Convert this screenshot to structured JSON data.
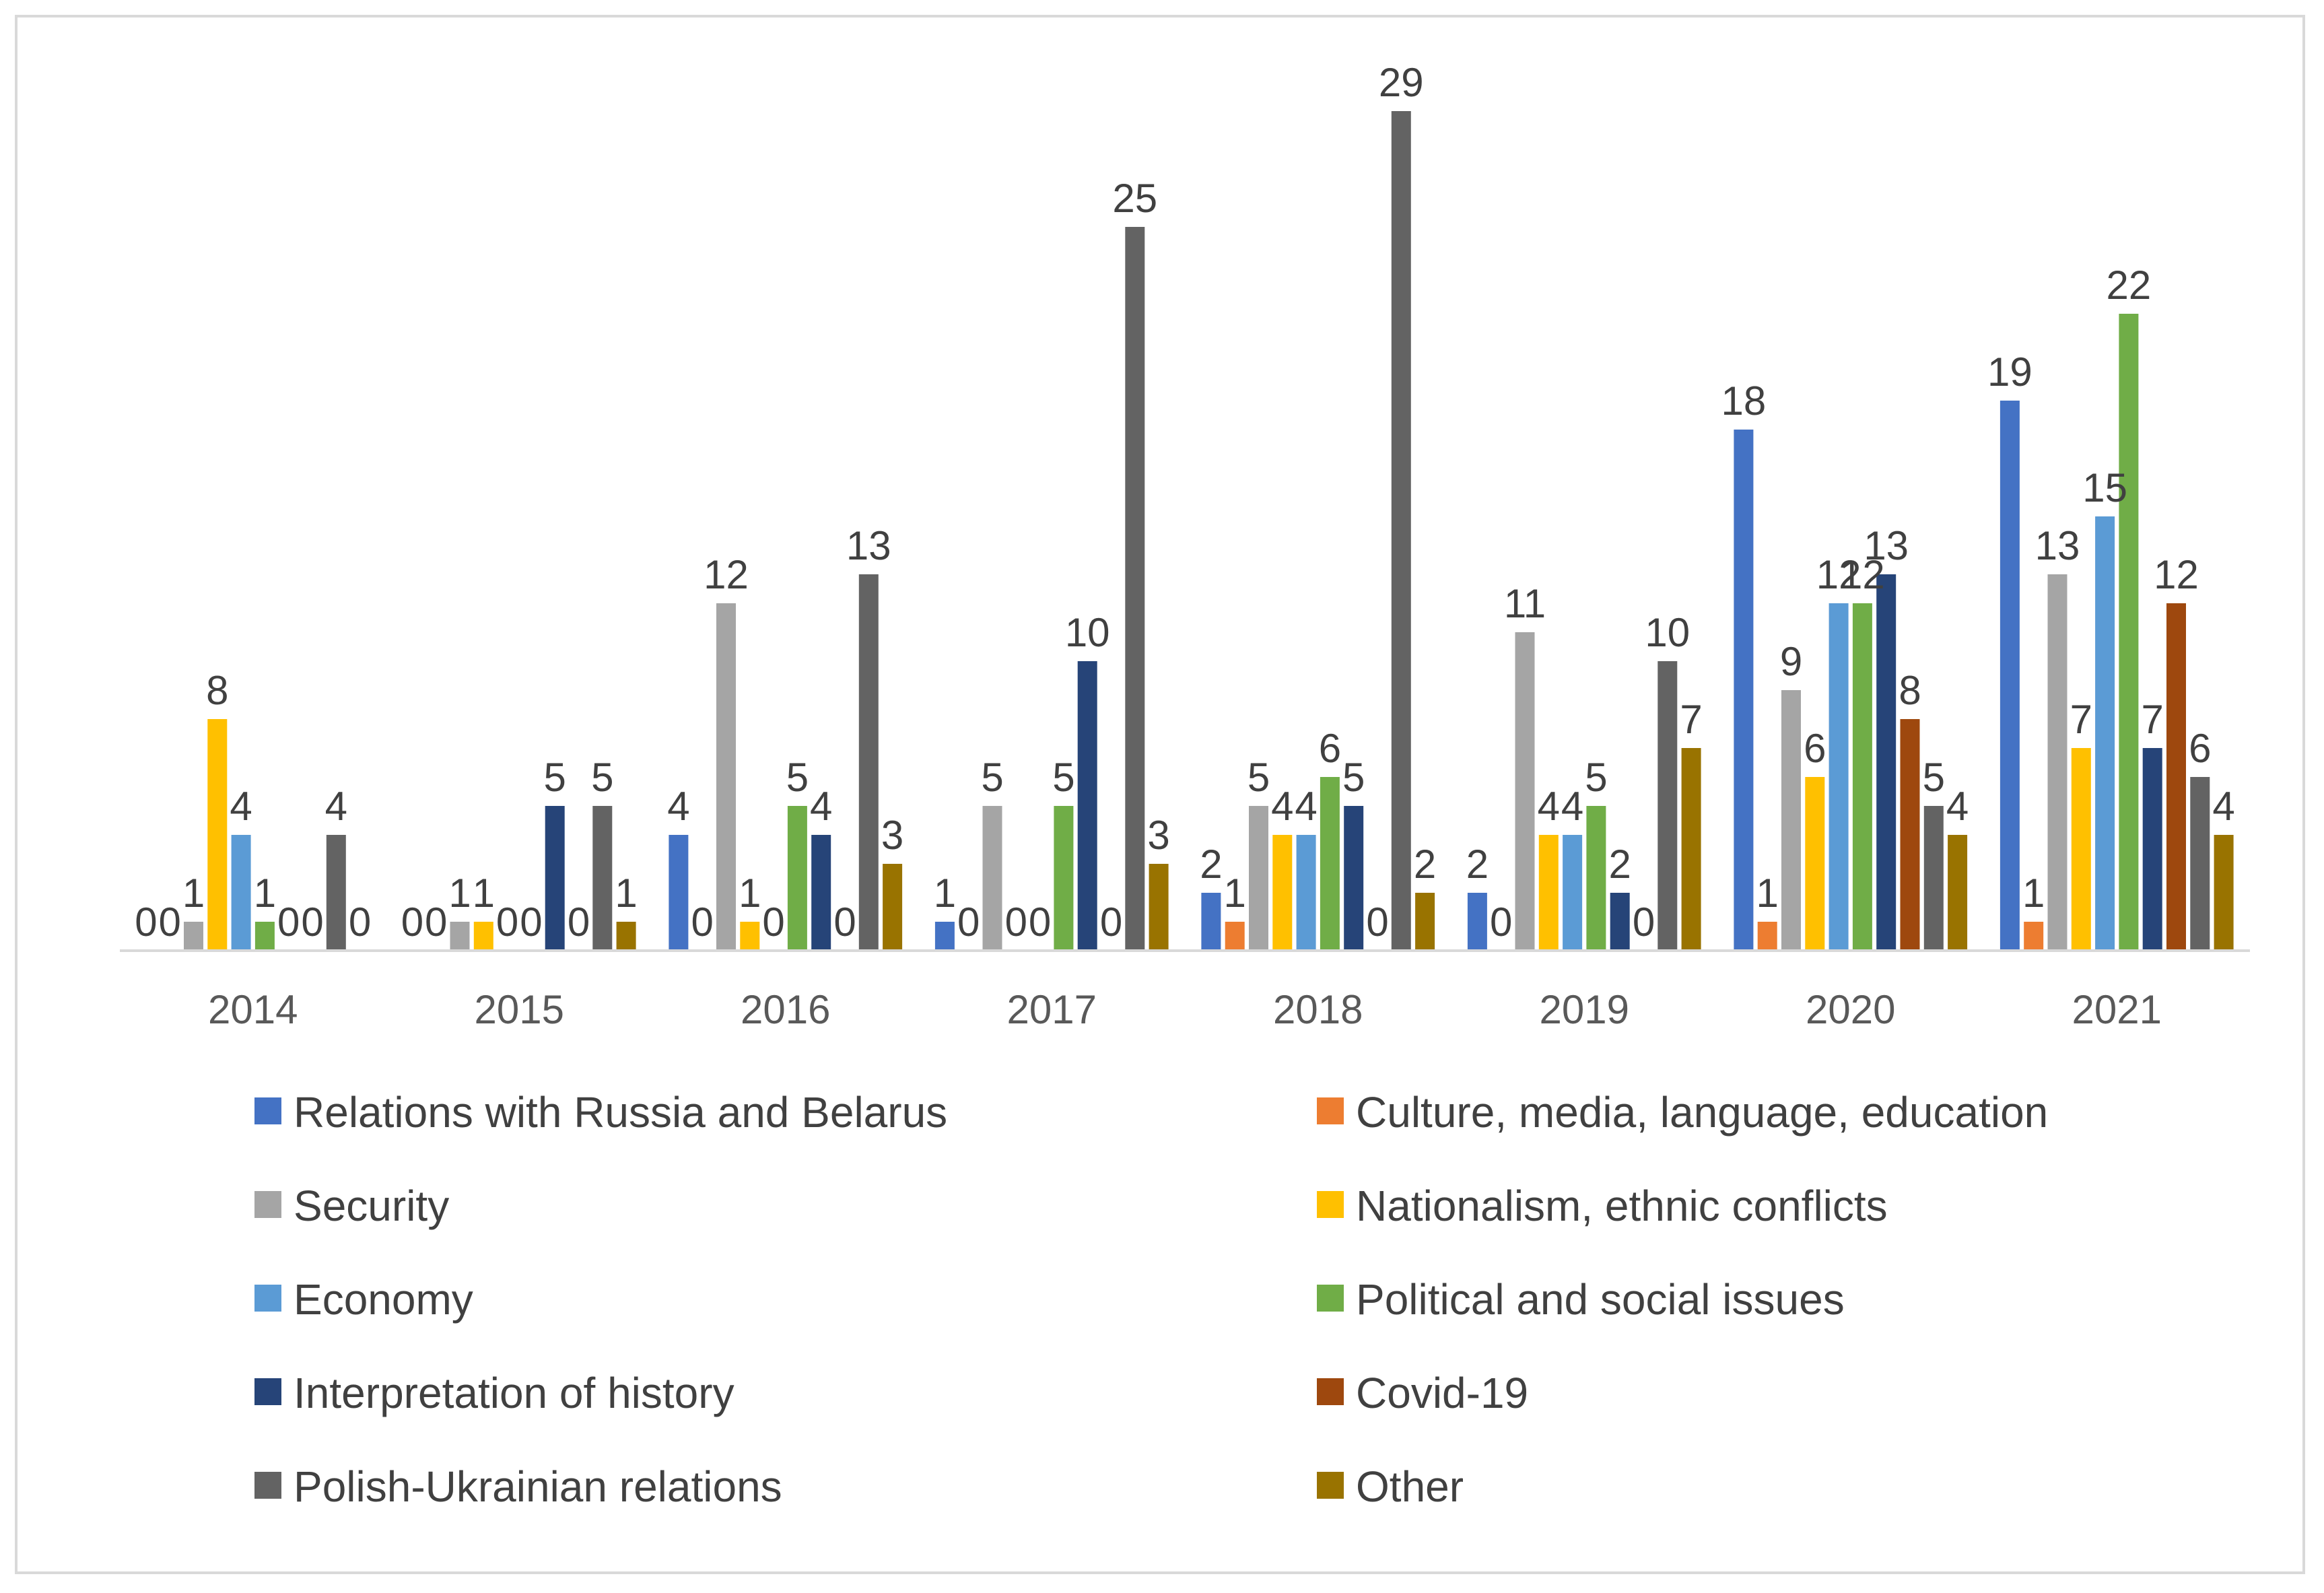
{
  "chart_data": {
    "type": "bar",
    "title": "",
    "xlabel": "",
    "ylabel": "",
    "ylim": [
      0,
      30
    ],
    "grid": false,
    "legend_position": "bottom",
    "categories": [
      "2014",
      "2015",
      "2016",
      "2017",
      "2018",
      "2019",
      "2020",
      "2021"
    ],
    "series": [
      {
        "name": "Relations with Russia and Belarus",
        "color": "#4472C4",
        "values": [
          0,
          0,
          4,
          1,
          2,
          2,
          18,
          19
        ]
      },
      {
        "name": "Culture, media, language, education",
        "color": "#ED7D31",
        "values": [
          0,
          0,
          0,
          0,
          1,
          0,
          1,
          1
        ]
      },
      {
        "name": "Security",
        "color": "#A5A5A5",
        "values": [
          1,
          1,
          12,
          5,
          5,
          11,
          9,
          13
        ]
      },
      {
        "name": "Nationalism, ethnic conflicts",
        "color": "#FFC000",
        "values": [
          8,
          1,
          1,
          0,
          4,
          4,
          6,
          7
        ]
      },
      {
        "name": "Economy",
        "color": "#5B9BD5",
        "values": [
          4,
          0,
          0,
          0,
          4,
          4,
          12,
          15
        ]
      },
      {
        "name": "Political and social issues",
        "color": "#70AD47",
        "values": [
          1,
          0,
          5,
          5,
          6,
          5,
          12,
          22
        ]
      },
      {
        "name": "Interpretation of history",
        "color": "#264478",
        "values": [
          0,
          5,
          4,
          10,
          5,
          2,
          13,
          7
        ]
      },
      {
        "name": "Covid-19",
        "color": "#9E480E",
        "values": [
          0,
          0,
          0,
          0,
          0,
          0,
          8,
          12
        ]
      },
      {
        "name": "Polish-Ukrainian relations",
        "color": "#636363",
        "values": [
          4,
          5,
          13,
          25,
          29,
          10,
          5,
          6
        ]
      },
      {
        "name": "Other",
        "color": "#997300",
        "values": [
          0,
          1,
          3,
          3,
          2,
          7,
          4,
          4
        ]
      }
    ]
  }
}
